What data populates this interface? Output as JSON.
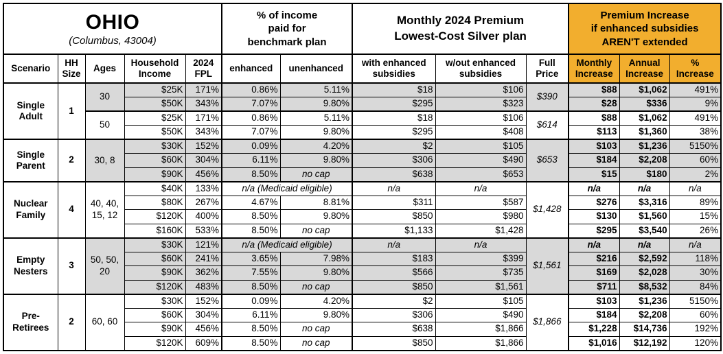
{
  "title": {
    "state": "OHIO",
    "location": "(Columbus, 43004)"
  },
  "headers": {
    "percent_income": "% of income\npaid for\nbenchmark plan",
    "premium": "Monthly 2024 Premium\nLowest-Cost Silver plan",
    "increase": "Premium Increase\nif enhanced subsidies\nAREN'T extended"
  },
  "columns": [
    "Scenario",
    "HH\nSize",
    "Ages",
    "Household\nIncome",
    "2024\nFPL",
    "enhanced",
    "unenhanced",
    "with enhanced\nsubsidies",
    "w/out enhanced\nsubsidies",
    "Full\nPrice",
    "Monthly\nIncrease",
    "Annual\nIncrease",
    "%\nIncrease"
  ],
  "colors": {
    "accent_orange": "#F2AE2E",
    "row_shade": "#D9D9D9",
    "border": "#000000"
  },
  "groups": [
    {
      "scenario": "Single Adult",
      "hh_size": "1",
      "subgroups": [
        {
          "ages": "30",
          "full_price": "$390",
          "shaded": true,
          "rows": [
            {
              "income": "$25K",
              "fpl": "171%",
              "enhanced": "0.86%",
              "unenhanced": "5.11%",
              "with_sub": "$18",
              "wout_sub": "$106",
              "monthly": "$88",
              "annual": "$1,062",
              "pct": "491%"
            },
            {
              "income": "$50K",
              "fpl": "343%",
              "enhanced": "7.07%",
              "unenhanced": "9.80%",
              "with_sub": "$295",
              "wout_sub": "$323",
              "monthly": "$28",
              "annual": "$336",
              "pct": "9%"
            }
          ]
        },
        {
          "ages": "50",
          "full_price": "$614",
          "shaded": false,
          "rows": [
            {
              "income": "$25K",
              "fpl": "171%",
              "enhanced": "0.86%",
              "unenhanced": "5.11%",
              "with_sub": "$18",
              "wout_sub": "$106",
              "monthly": "$88",
              "annual": "$1,062",
              "pct": "491%"
            },
            {
              "income": "$50K",
              "fpl": "343%",
              "enhanced": "7.07%",
              "unenhanced": "9.80%",
              "with_sub": "$295",
              "wout_sub": "$408",
              "monthly": "$113",
              "annual": "$1,360",
              "pct": "38%"
            }
          ]
        }
      ]
    },
    {
      "scenario": "Single Parent",
      "hh_size": "2",
      "subgroups": [
        {
          "ages": "30, 8",
          "full_price": "$653",
          "shaded": true,
          "rows": [
            {
              "income": "$30K",
              "fpl": "152%",
              "enhanced": "0.09%",
              "unenhanced": "4.20%",
              "with_sub": "$2",
              "wout_sub": "$105",
              "monthly": "$103",
              "annual": "$1,236",
              "pct": "5150%"
            },
            {
              "income": "$60K",
              "fpl": "304%",
              "enhanced": "6.11%",
              "unenhanced": "9.80%",
              "with_sub": "$306",
              "wout_sub": "$490",
              "monthly": "$184",
              "annual": "$2,208",
              "pct": "60%"
            },
            {
              "income": "$90K",
              "fpl": "456%",
              "enhanced": "8.50%",
              "unenhanced": "no cap",
              "with_sub": "$638",
              "wout_sub": "$653",
              "monthly": "$15",
              "annual": "$180",
              "pct": "2%"
            }
          ]
        }
      ]
    },
    {
      "scenario": "Nuclear Family",
      "hh_size": "4",
      "subgroups": [
        {
          "ages": "40, 40, 15, 12",
          "full_price": "$1,428",
          "shaded": false,
          "rows": [
            {
              "income": "$40K",
              "fpl": "133%",
              "medicaid": true,
              "enhanced": "n/a (Medicaid eligible)",
              "with_sub": "n/a",
              "wout_sub": "n/a",
              "monthly": "n/a",
              "annual": "n/a",
              "pct": "n/a"
            },
            {
              "income": "$80K",
              "fpl": "267%",
              "enhanced": "4.67%",
              "unenhanced": "8.81%",
              "with_sub": "$311",
              "wout_sub": "$587",
              "monthly": "$276",
              "annual": "$3,316",
              "pct": "89%"
            },
            {
              "income": "$120K",
              "fpl": "400%",
              "enhanced": "8.50%",
              "unenhanced": "9.80%",
              "with_sub": "$850",
              "wout_sub": "$980",
              "monthly": "$130",
              "annual": "$1,560",
              "pct": "15%"
            },
            {
              "income": "$160K",
              "fpl": "533%",
              "enhanced": "8.50%",
              "unenhanced": "no cap",
              "with_sub": "$1,133",
              "wout_sub": "$1,428",
              "monthly": "$295",
              "annual": "$3,540",
              "pct": "26%"
            }
          ]
        }
      ]
    },
    {
      "scenario": "Empty Nesters",
      "hh_size": "3",
      "subgroups": [
        {
          "ages": "50, 50, 20",
          "full_price": "$1,561",
          "shaded": true,
          "rows": [
            {
              "income": "$30K",
              "fpl": "121%",
              "medicaid": true,
              "enhanced": "n/a (Medicaid eligible)",
              "with_sub": "n/a",
              "wout_sub": "n/a",
              "monthly": "n/a",
              "annual": "n/a",
              "pct": "n/a"
            },
            {
              "income": "$60K",
              "fpl": "241%",
              "enhanced": "3.65%",
              "unenhanced": "7.98%",
              "with_sub": "$183",
              "wout_sub": "$399",
              "monthly": "$216",
              "annual": "$2,592",
              "pct": "118%"
            },
            {
              "income": "$90K",
              "fpl": "362%",
              "enhanced": "7.55%",
              "unenhanced": "9.80%",
              "with_sub": "$566",
              "wout_sub": "$735",
              "monthly": "$169",
              "annual": "$2,028",
              "pct": "30%"
            },
            {
              "income": "$120K",
              "fpl": "483%",
              "enhanced": "8.50%",
              "unenhanced": "no cap",
              "with_sub": "$850",
              "wout_sub": "$1,561",
              "monthly": "$711",
              "annual": "$8,532",
              "pct": "84%"
            }
          ]
        }
      ]
    },
    {
      "scenario": "Pre-Retirees",
      "hh_size": "2",
      "subgroups": [
        {
          "ages": "60, 60",
          "full_price": "$1,866",
          "shaded": false,
          "rows": [
            {
              "income": "$30K",
              "fpl": "152%",
              "enhanced": "0.09%",
              "unenhanced": "4.20%",
              "with_sub": "$2",
              "wout_sub": "$105",
              "monthly": "$103",
              "annual": "$1,236",
              "pct": "5150%"
            },
            {
              "income": "$60K",
              "fpl": "304%",
              "enhanced": "6.11%",
              "unenhanced": "9.80%",
              "with_sub": "$306",
              "wout_sub": "$490",
              "monthly": "$184",
              "annual": "$2,208",
              "pct": "60%"
            },
            {
              "income": "$90K",
              "fpl": "456%",
              "enhanced": "8.50%",
              "unenhanced": "no cap",
              "with_sub": "$638",
              "wout_sub": "$1,866",
              "monthly": "$1,228",
              "annual": "$14,736",
              "pct": "192%"
            },
            {
              "income": "$120K",
              "fpl": "609%",
              "enhanced": "8.50%",
              "unenhanced": "no cap",
              "with_sub": "$850",
              "wout_sub": "$1,866",
              "monthly": "$1,016",
              "annual": "$12,192",
              "pct": "120%"
            }
          ]
        }
      ]
    }
  ]
}
